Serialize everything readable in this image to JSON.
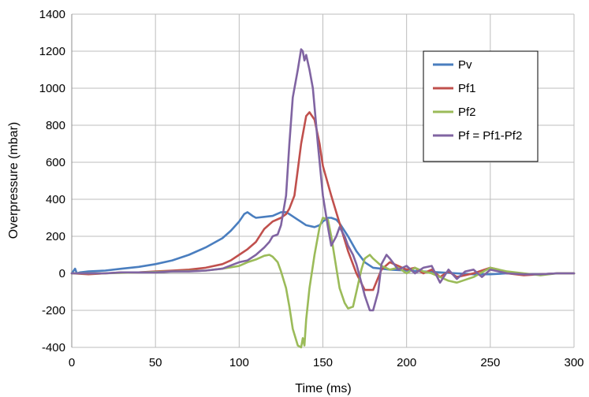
{
  "chart_data": {
    "type": "line",
    "xlabel": "Time (ms)",
    "ylabel": "Overpressure  (mbar)",
    "xlim": [
      0,
      300
    ],
    "ylim": [
      -400,
      1400
    ],
    "xticks": [
      0,
      50,
      100,
      150,
      200,
      250,
      300
    ],
    "yticks": [
      -400,
      -200,
      0,
      200,
      400,
      600,
      800,
      1000,
      1200,
      1400
    ],
    "grid": true,
    "legend_position": "top-right",
    "series": [
      {
        "name": "Pv",
        "color": "#4a7ebf",
        "x": [
          0,
          2,
          3,
          5,
          10,
          20,
          30,
          40,
          50,
          60,
          70,
          80,
          90,
          95,
          100,
          103,
          105,
          108,
          110,
          115,
          120,
          125,
          128,
          130,
          135,
          140,
          145,
          148,
          150,
          153,
          155,
          158,
          160,
          165,
          170,
          175,
          180,
          190,
          200,
          210,
          220,
          230,
          240,
          250,
          260,
          270,
          280,
          290,
          300
        ],
        "y": [
          0,
          25,
          0,
          5,
          10,
          15,
          25,
          35,
          50,
          70,
          100,
          140,
          190,
          230,
          280,
          320,
          330,
          310,
          300,
          305,
          310,
          330,
          330,
          320,
          290,
          260,
          250,
          260,
          280,
          300,
          300,
          290,
          270,
          200,
          120,
          60,
          30,
          20,
          15,
          10,
          5,
          0,
          -5,
          -5,
          0,
          -5,
          -5,
          0,
          0
        ]
      },
      {
        "name": "Pf1",
        "color": "#c0504d",
        "x": [
          0,
          10,
          20,
          30,
          40,
          50,
          60,
          70,
          80,
          90,
          95,
          100,
          105,
          110,
          115,
          120,
          125,
          128,
          130,
          133,
          135,
          137,
          140,
          142,
          145,
          148,
          150,
          155,
          160,
          165,
          170,
          175,
          180,
          185,
          190,
          195,
          200,
          205,
          210,
          215,
          220,
          225,
          230,
          240,
          250,
          255,
          260,
          270,
          280,
          290,
          300
        ],
        "y": [
          0,
          -5,
          0,
          5,
          5,
          10,
          15,
          20,
          30,
          50,
          70,
          100,
          130,
          170,
          240,
          280,
          300,
          320,
          350,
          420,
          560,
          700,
          850,
          870,
          830,
          700,
          580,
          420,
          270,
          120,
          0,
          -90,
          -90,
          20,
          60,
          40,
          20,
          30,
          0,
          20,
          -20,
          10,
          -20,
          0,
          30,
          20,
          0,
          -10,
          -5,
          0,
          0
        ]
      },
      {
        "name": "Pf2",
        "color": "#9bbb59",
        "x": [
          0,
          20,
          40,
          60,
          80,
          90,
          100,
          105,
          110,
          115,
          118,
          120,
          123,
          125,
          128,
          130,
          132,
          135,
          137,
          138,
          139,
          140,
          142,
          145,
          148,
          150,
          153,
          155,
          158,
          160,
          163,
          165,
          168,
          170,
          173,
          175,
          178,
          180,
          185,
          190,
          195,
          200,
          205,
          210,
          215,
          220,
          225,
          230,
          240,
          250,
          260,
          270,
          280,
          290,
          300
        ],
        "y": [
          0,
          0,
          5,
          10,
          15,
          25,
          40,
          60,
          75,
          95,
          100,
          90,
          60,
          10,
          -80,
          -180,
          -300,
          -390,
          -400,
          -350,
          -390,
          -250,
          -80,
          100,
          250,
          300,
          290,
          200,
          30,
          -80,
          -160,
          -190,
          -180,
          -100,
          20,
          80,
          100,
          80,
          40,
          20,
          30,
          0,
          30,
          10,
          0,
          -20,
          -40,
          -50,
          -20,
          30,
          10,
          0,
          -10,
          0,
          0
        ]
      },
      {
        "name": "Pf = Pf1-Pf2",
        "color": "#8064a2",
        "x": [
          0,
          10,
          20,
          30,
          40,
          50,
          60,
          70,
          80,
          90,
          100,
          105,
          110,
          115,
          118,
          120,
          123,
          125,
          128,
          130,
          132,
          135,
          137,
          138,
          139,
          140,
          142,
          144,
          145,
          147,
          150,
          153,
          155,
          158,
          160,
          163,
          165,
          168,
          170,
          173,
          175,
          178,
          180,
          183,
          185,
          188,
          190,
          195,
          200,
          205,
          210,
          215,
          220,
          225,
          230,
          235,
          240,
          245,
          250,
          255,
          260,
          270,
          280,
          290,
          300
        ],
        "y": [
          0,
          0,
          0,
          5,
          5,
          5,
          10,
          10,
          15,
          25,
          60,
          70,
          100,
          140,
          170,
          200,
          210,
          260,
          420,
          700,
          950,
          1100,
          1210,
          1200,
          1150,
          1180,
          1100,
          1000,
          900,
          700,
          420,
          250,
          150,
          200,
          250,
          200,
          150,
          100,
          50,
          -50,
          -120,
          -200,
          -200,
          -100,
          50,
          100,
          80,
          20,
          40,
          0,
          30,
          40,
          -50,
          20,
          -30,
          10,
          20,
          -20,
          20,
          10,
          0,
          -5,
          -5,
          0,
          0
        ]
      }
    ]
  }
}
